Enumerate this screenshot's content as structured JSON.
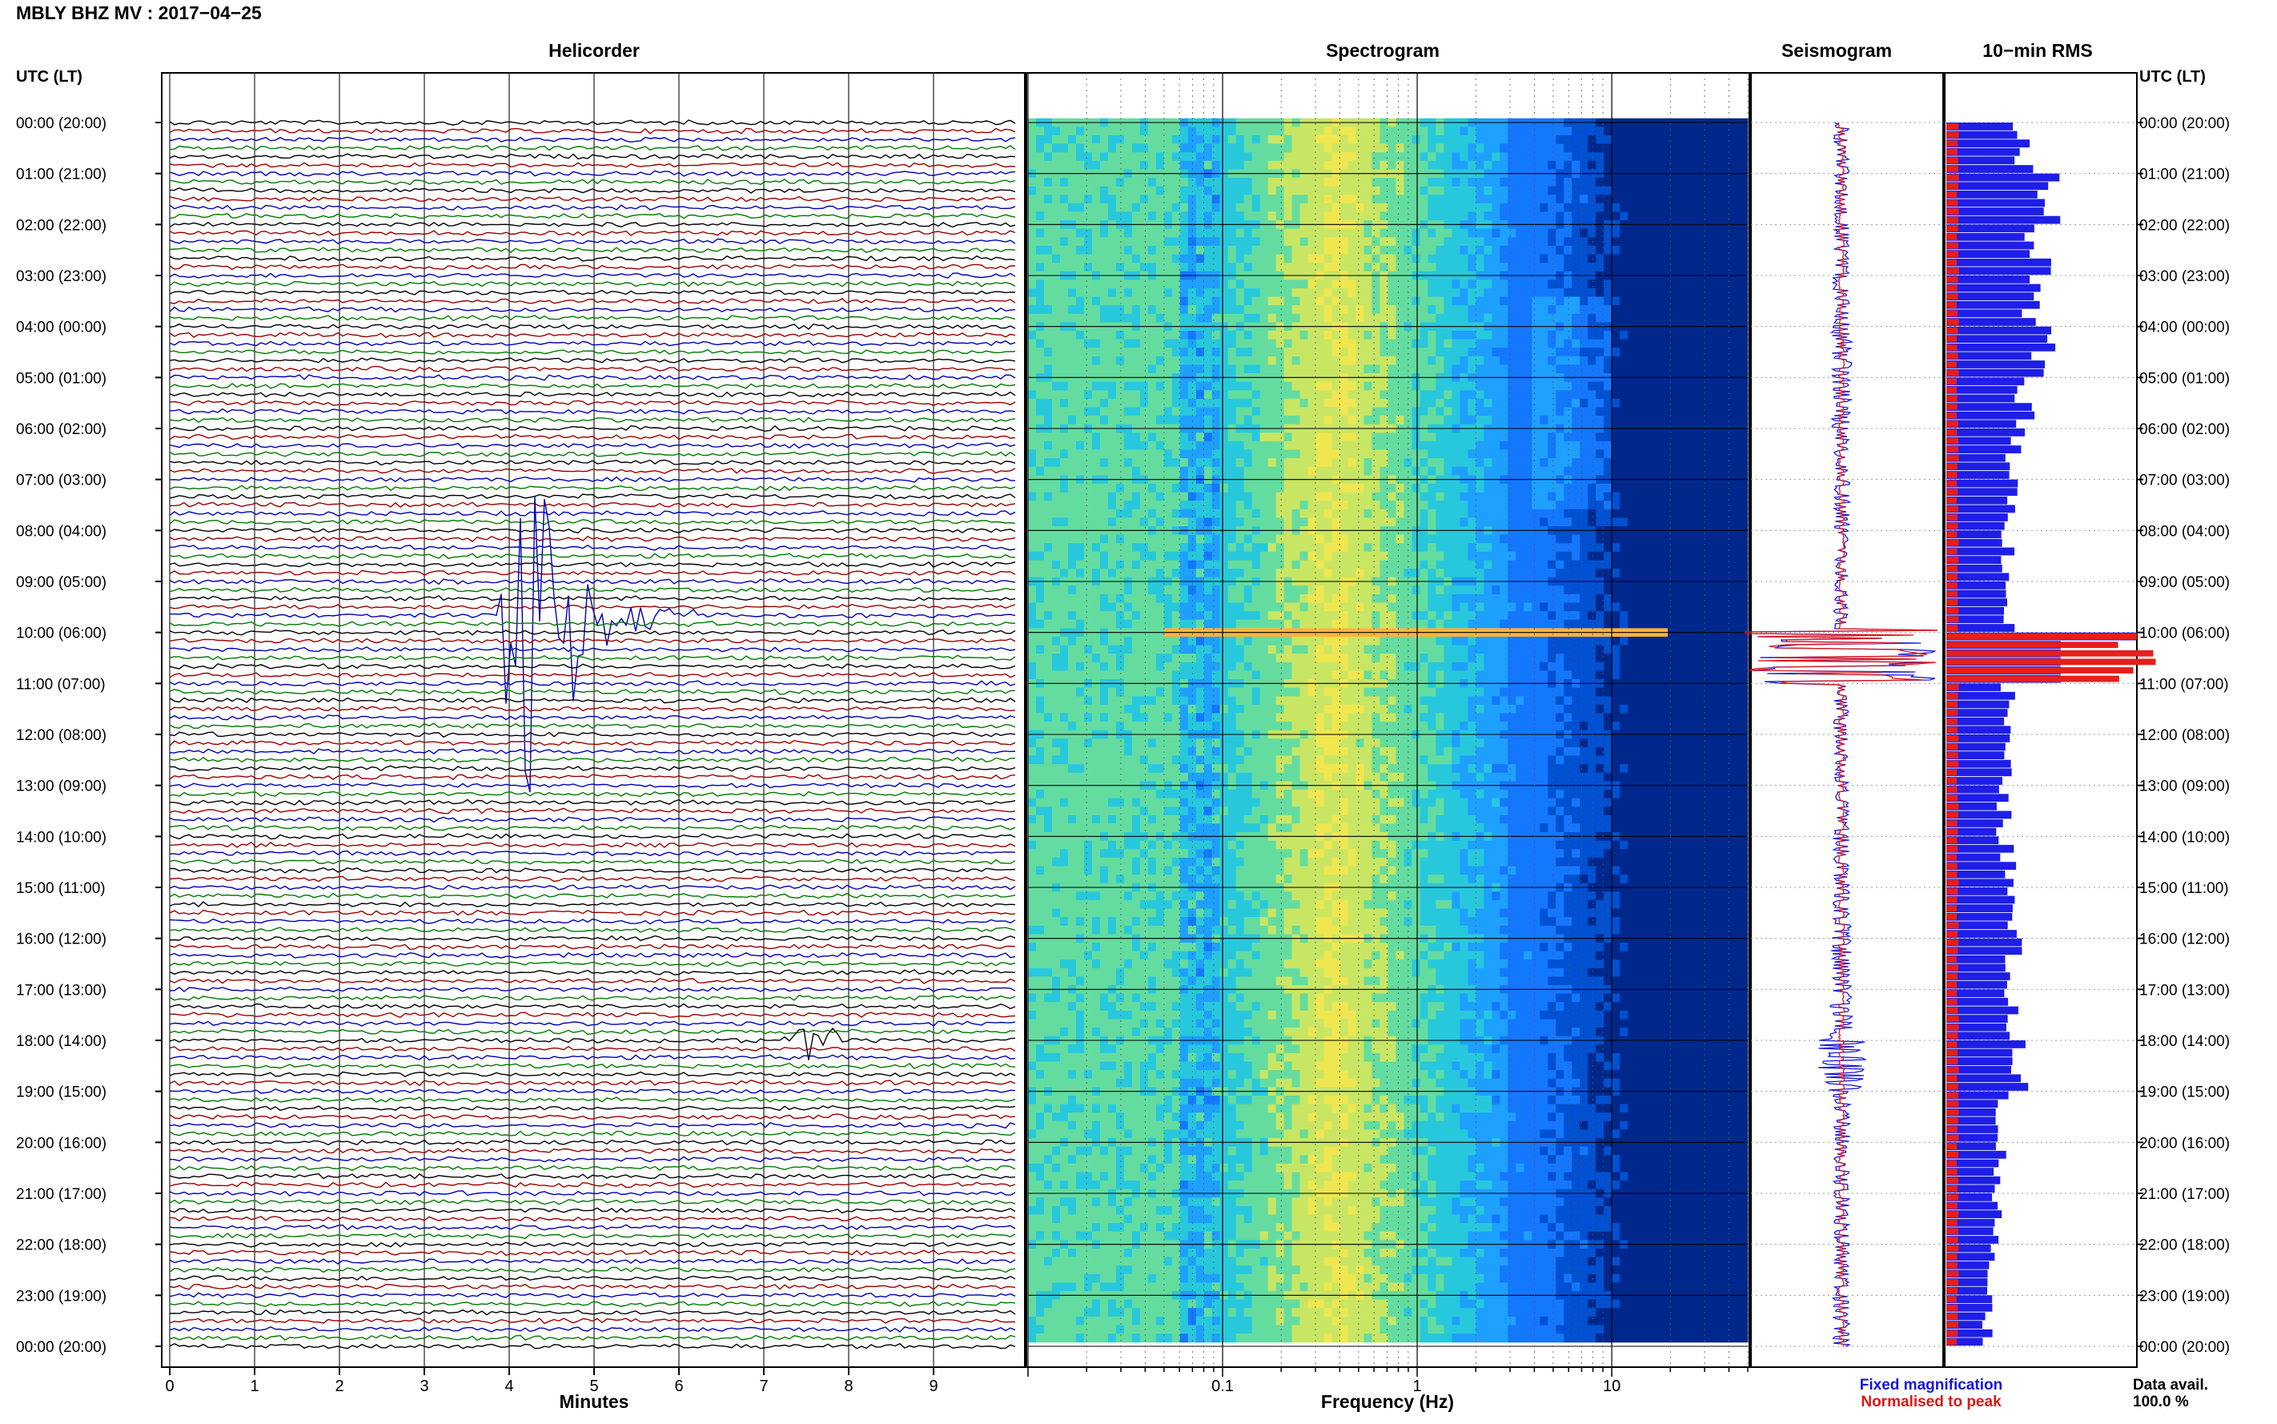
{
  "header": {
    "title": "MBLY BHZ MV : 2017−04−25"
  },
  "panels": {
    "helicorder_title": "Helicorder",
    "spectrogram_title": "Spectrogram",
    "seismogram_title": "Seismogram",
    "rms_title": "10−min RMS",
    "left_axis_title": "UTC (LT)",
    "right_axis_title": "UTC (LT)",
    "helicorder_xlabel": "Minutes",
    "spectrogram_xlabel": "Frequency (Hz)"
  },
  "legend": {
    "fixed": "Fixed magnification",
    "fixed_color": "#1515e0",
    "normalised": "Normalised to peak",
    "normalised_color": "#e01515"
  },
  "data_avail": {
    "label": "Data avail.",
    "value": "100.0 %"
  },
  "colors": {
    "trace_cycle": [
      "#000000",
      "#9b0000",
      "#0000b4",
      "#007a00"
    ],
    "rms_fixed": "#1e1ee6",
    "rms_norm": "#e61e1e"
  },
  "chart_data": [
    {
      "type": "line",
      "name": "helicorder",
      "xlabel": "Minutes",
      "x_ticks": [
        "0",
        "1",
        "2",
        "3",
        "4",
        "5",
        "6",
        "7",
        "8",
        "9"
      ],
      "xlim": [
        0,
        10
      ],
      "time_labels": [
        "00:00 (20:00)",
        "01:00 (21:00)",
        "02:00 (22:00)",
        "03:00 (23:00)",
        "04:00 (00:00)",
        "05:00 (01:00)",
        "06:00 (02:00)",
        "07:00 (03:00)",
        "08:00 (04:00)",
        "09:00 (05:00)",
        "10:00 (06:00)",
        "11:00 (07:00)",
        "12:00 (08:00)",
        "13:00 (09:00)",
        "14:00 (10:00)",
        "15:00 (11:00)",
        "16:00 (12:00)",
        "17:00 (13:00)",
        "18:00 (14:00)",
        "19:00 (15:00)",
        "20:00 (16:00)",
        "21:00 (17:00)",
        "22:00 (18:00)",
        "23:00 (19:00)",
        "00:00 (20:00)"
      ],
      "lines_per_hour": 6,
      "line_minutes": 10,
      "events": [
        {
          "utc_hour": 9.6667,
          "minute": 4.2,
          "amplitude": 7.5,
          "duration_min": 2.0
        },
        {
          "utc_hour": 18.0,
          "minute": 7.55,
          "amplitude": 0.6,
          "duration_min": 0.4
        }
      ]
    },
    {
      "type": "heatmap",
      "name": "spectrogram",
      "xlabel": "Frequency (Hz)",
      "x_scale": "log",
      "xlim": [
        0.01,
        50
      ],
      "x_ticks": [
        "0.1",
        "1",
        "10"
      ],
      "colormap": [
        "#00288c",
        "#0050d2",
        "#1478ff",
        "#1ea0ff",
        "#28c8dc",
        "#64dca0",
        "#c8e664",
        "#f0e650",
        "#ffb43c"
      ],
      "peak_band_hz": [
        0.3,
        0.45
      ],
      "high_noise_rows_utc_hours": [
        3.5,
        7.5
      ]
    },
    {
      "type": "line",
      "name": "seismogram",
      "series": [
        {
          "name": "Fixed magnification",
          "values": [
            0.08,
            0.07,
            0.08,
            0.09,
            0.11,
            0.1,
            0.08,
            0.09,
            0.07,
            0.08,
            1.0,
            0.08,
            0.07,
            0.08,
            0.09,
            0.1,
            0.11,
            0.12,
            0.25,
            0.09,
            0.08,
            0.08,
            0.08,
            0.09
          ]
        },
        {
          "name": "Normalised to peak",
          "values": [
            0.03,
            0.03,
            0.03,
            0.03,
            0.03,
            0.03,
            0.03,
            0.03,
            0.03,
            0.03,
            1.0,
            0.03,
            0.03,
            0.03,
            0.03,
            0.03,
            0.03,
            0.03,
            0.03,
            0.03,
            0.03,
            0.03,
            0.03,
            0.03
          ]
        }
      ]
    },
    {
      "type": "bar",
      "name": "10-min RMS",
      "orientation": "horizontal",
      "rows_per_hour": 6,
      "series": [
        {
          "name": "Fixed magnification",
          "values": [
            0.4,
            0.52,
            0.48,
            0.44,
            0.5,
            0.42,
            0.36,
            0.34,
            0.33,
            0.32,
            1.0,
            0.32,
            0.3,
            0.3,
            0.32,
            0.34,
            0.35,
            0.33,
            0.4,
            0.3,
            0.28,
            0.26,
            0.25,
            0.22
          ]
        },
        {
          "name": "Normalised to peak",
          "values": [
            0.06,
            0.06,
            0.06,
            0.06,
            0.06,
            0.06,
            0.06,
            0.06,
            0.06,
            0.06,
            1.0,
            0.06,
            0.06,
            0.06,
            0.06,
            0.06,
            0.06,
            0.06,
            0.06,
            0.06,
            0.06,
            0.06,
            0.06,
            0.06
          ]
        }
      ]
    }
  ]
}
